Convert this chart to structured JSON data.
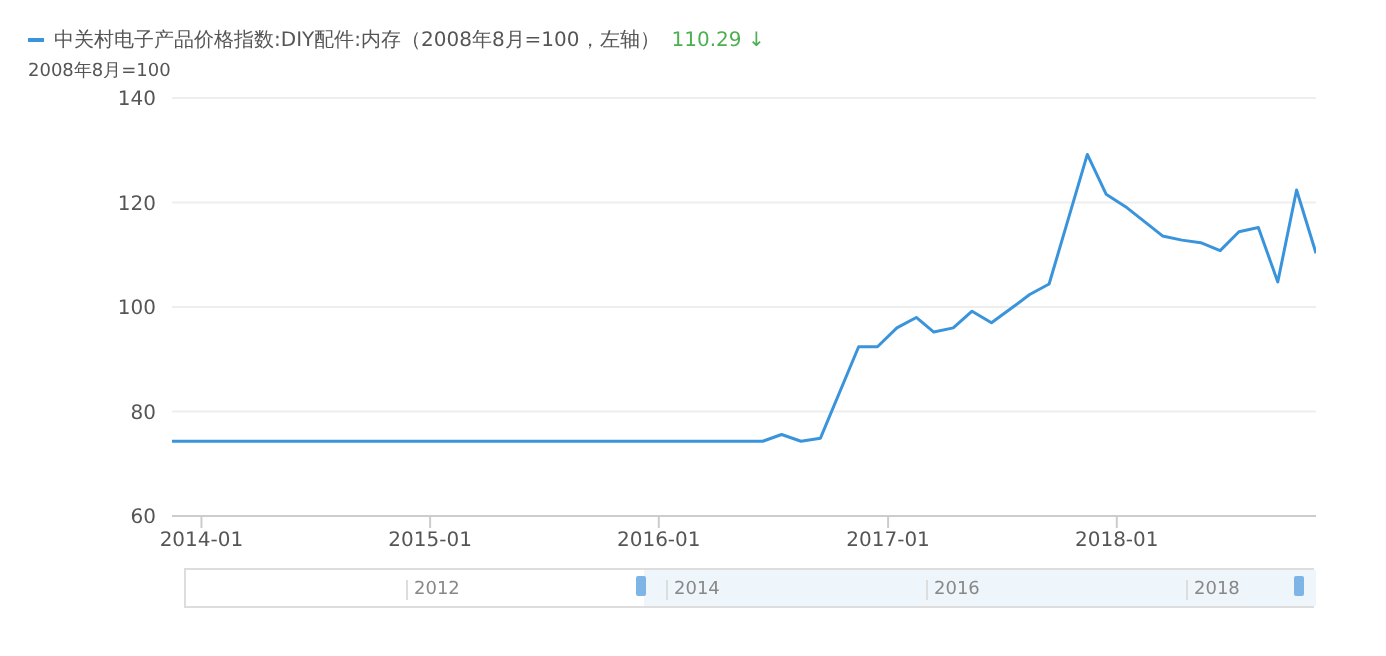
{
  "chart_data": {
    "type": "line",
    "ylabel": "2008年8月=100",
    "x": [
      "2013-11-15",
      "2016-06-15",
      "2016-07-15",
      "2016-08-15",
      "2016-09-15",
      "2016-11-15",
      "2016-12-15",
      "2017-01-15",
      "2017-02-15",
      "2017-03-15",
      "2017-04-15",
      "2017-05-15",
      "2017-06-15",
      "2017-07-15",
      "2017-08-15",
      "2017-09-15",
      "2017-11-15",
      "2017-12-15",
      "2018-01-15",
      "2018-03-15",
      "2018-04-15",
      "2018-05-15",
      "2018-06-15",
      "2018-07-15",
      "2018-08-15",
      "2018-09-15",
      "2018-10-15",
      "2018-11-15"
    ],
    "series": [
      {
        "name": "中关村电子产品价格指数:DIY配件:内存（2008年8月=100，左轴）",
        "color": "#3a94dc",
        "values": [
          74.3,
          74.3,
          75.6,
          74.3,
          74.9,
          92.4,
          92.4,
          96,
          98,
          95.2,
          96,
          99.2,
          97,
          99.6,
          102.4,
          104.4,
          129.2,
          121.6,
          119.2,
          113.6,
          112.8,
          112.3,
          110.8,
          114.4,
          115.2,
          104.8,
          122.4,
          110.29
        ]
      }
    ],
    "xlim": [
      "2013-11-15",
      "2018-11-15"
    ],
    "xticks": [
      "2014-01",
      "2015-01",
      "2016-01",
      "2017-01",
      "2018-01"
    ],
    "ylim": [
      60,
      140
    ],
    "yticks": [
      60,
      80,
      100,
      120,
      140
    ],
    "grid": "y",
    "legend": "top left",
    "marker": "none",
    "line_style": "solid",
    "annotations": [
      "110.29 ↓",
      "2012",
      "2014",
      "2016",
      "2018"
    ]
  }
}
